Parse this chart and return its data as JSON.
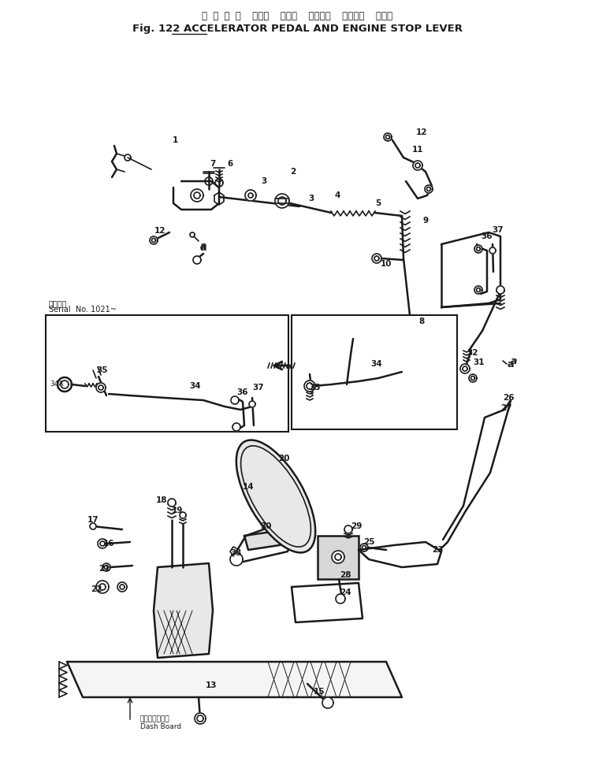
{
  "title_japanese": "ア ク セ ル  ペダル  および  エンジン  ストップ  レバー",
  "title_line1": "ア ク セ ル  ペダル  および  エンジン  ストップ  レバー",
  "title_line2": "Fig. 122 ACCELERATOR PEDAL AND ENGINE STOP LEVER",
  "background_color": "#ffffff",
  "line_color": "#1a1a1a",
  "fig_width": 7.55,
  "fig_height": 9.85,
  "dpi": 100,
  "serial_jp": "適用番号",
  "serial_en": "Serial No. 1021~",
  "dash_jp": "タッシュボード",
  "dash_en": "Dash Board"
}
